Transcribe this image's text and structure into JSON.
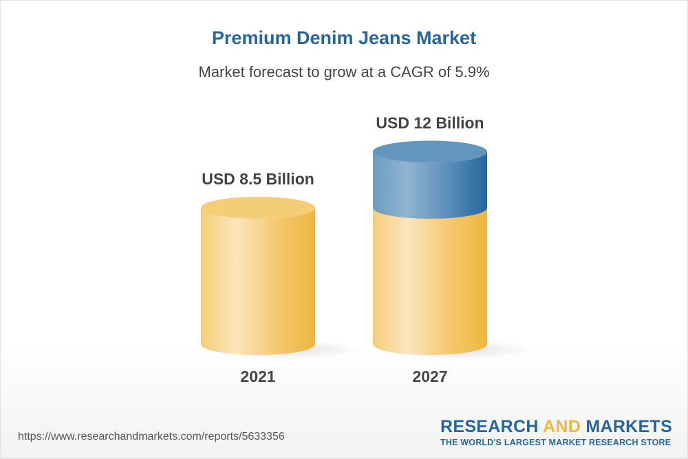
{
  "chart_data": {
    "type": "bar",
    "title": "Premium Denim Jeans Market",
    "subtitle": "Market forecast to grow at a CAGR of 5.9%",
    "categories": [
      "2021",
      "2027"
    ],
    "values": [
      8.5,
      12
    ],
    "data_labels": [
      "USD 8.5 Billion",
      "USD 12 Billion"
    ],
    "unit": "USD Billion",
    "style": "3d-cylinder",
    "colors": {
      "base": "#f2c15a",
      "growth": "#4f87b5"
    },
    "grid": false
  },
  "footer": {
    "url": "https://www.researchandmarkets.com/reports/5633356",
    "logo_part1": "RESEARCH ",
    "logo_part2": "AND",
    "logo_part3": " MARKETS",
    "tagline": "THE WORLD'S LARGEST MARKET RESEARCH STORE"
  }
}
